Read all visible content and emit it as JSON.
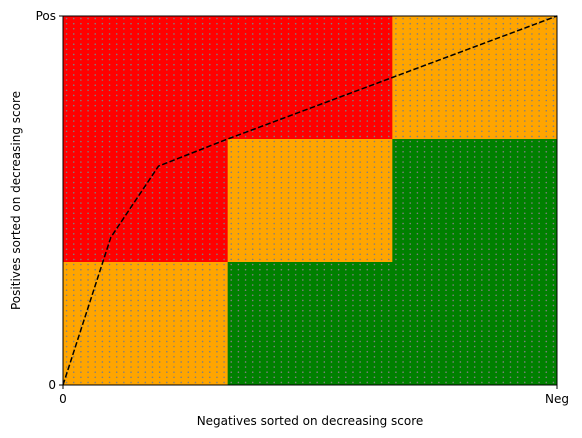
{
  "chart_data": {
    "type": "heatmap",
    "xlabel": "Negatives sorted on decreasing score",
    "ylabel": "Positives sorted on decreasing score",
    "xlim": [
      0,
      3
    ],
    "ylim": [
      0,
      3
    ],
    "x_ticks": [
      {
        "value": 0,
        "label": "0"
      },
      {
        "value": 3,
        "label": "Neg"
      }
    ],
    "y_ticks": [
      {
        "value": 0,
        "label": "0"
      },
      {
        "value": 3,
        "label": "Pos"
      }
    ],
    "colors": {
      "red": "#ff0000",
      "orange": "#ffa500",
      "green": "#008000",
      "dots": "#808080",
      "curve": "#000000"
    },
    "grid_columns": 3,
    "grid_rows": 3,
    "cells_top_to_bottom": [
      [
        "red",
        "red",
        "orange"
      ],
      [
        "red",
        "orange",
        "green"
      ],
      [
        "orange",
        "green",
        "green"
      ]
    ],
    "dot_pattern": {
      "columns": 69,
      "rows": 72
    },
    "curve": {
      "style": "dashed",
      "x": [
        0,
        0.29,
        0.58,
        1.0,
        2.0,
        3.0
      ],
      "y": [
        0,
        1.2,
        1.78,
        2.0,
        2.5,
        3.0
      ]
    }
  }
}
